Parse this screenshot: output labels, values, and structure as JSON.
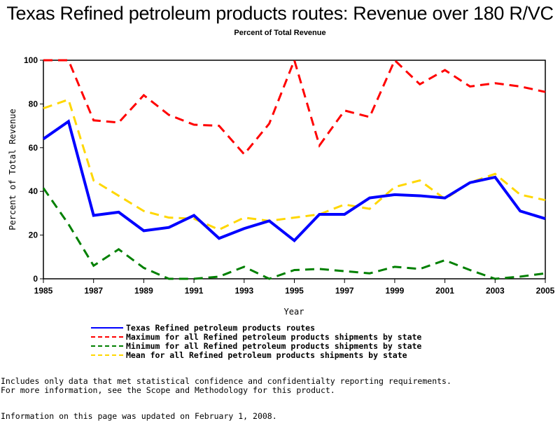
{
  "chart_data": {
    "type": "line",
    "title": "Texas Refined petroleum products routes: Revenue over 180 R/VC",
    "subtitle": "Percent of Total Revenue",
    "xlabel": "Year",
    "ylabel": "Percent of Total Revenue",
    "xlim": [
      1985,
      2005
    ],
    "ylim": [
      0,
      100
    ],
    "x_ticks": [
      "1985",
      "1987",
      "1989",
      "1991",
      "1993",
      "1995",
      "1997",
      "1999",
      "2001",
      "2003",
      "2005"
    ],
    "y_ticks": [
      "0",
      "20",
      "40",
      "60",
      "80",
      "100"
    ],
    "grid": false,
    "legend_position": "bottom",
    "x": [
      1985,
      1986,
      1987,
      1988,
      1989,
      1990,
      1991,
      1992,
      1993,
      1994,
      1995,
      1996,
      1997,
      1998,
      1999,
      2000,
      2001,
      2002,
      2003,
      2004,
      2005
    ],
    "series": [
      {
        "name": "Texas Refined petroleum products routes",
        "color": "#0000ff",
        "style": "solid",
        "values": [
          64,
          72,
          29,
          30.5,
          22,
          23.5,
          29,
          18.5,
          23,
          26.5,
          17.5,
          29.5,
          29.5,
          37,
          38.5,
          38,
          37,
          44,
          46.5,
          31,
          27.5
        ]
      },
      {
        "name": "Maximum for all Refined petroleum products shipments by state",
        "color": "#ff0000",
        "style": "dashed",
        "values": [
          100,
          100,
          72.5,
          71.5,
          84,
          75,
          70.5,
          70,
          57,
          71,
          100,
          61,
          77,
          74,
          100,
          89,
          95.5,
          88,
          89.5,
          88,
          85.5
        ]
      },
      {
        "name": "Minimum for all Refined petroleum products shipments by state",
        "color": "#008000",
        "style": "dashed",
        "values": [
          41.5,
          25,
          6,
          13.5,
          5,
          0,
          0,
          1,
          5.5,
          0,
          4,
          4.5,
          3.5,
          2.5,
          5.5,
          4.5,
          8.5,
          4,
          0,
          1,
          2.5
        ]
      },
      {
        "name": "Mean for all Refined petroleum products shipments by state",
        "color": "#ffd700",
        "style": "dashed",
        "values": [
          78,
          82,
          45,
          38,
          31,
          28,
          27.5,
          22.5,
          28,
          26.5,
          28,
          29.5,
          34,
          32,
          42,
          45,
          36.5,
          44,
          48,
          38.5,
          36
        ]
      }
    ]
  },
  "notes": {
    "line1": "Includes only data that met statistical confidence and confidentialty reporting requirements.",
    "line2": "For more information, see the Scope and Methodology for this product.",
    "updated": "Information on this page was updated on February 1, 2008."
  }
}
